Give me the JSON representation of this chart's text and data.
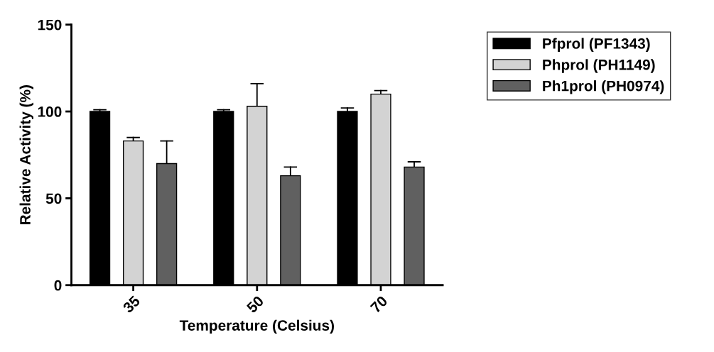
{
  "chart_data": {
    "type": "bar",
    "xlabel": "Temperature (Celsius)",
    "ylabel": "Relative Activity (%)",
    "categories": [
      "35",
      "50",
      "70"
    ],
    "series": [
      {
        "name": "Pfprol (PF1343)",
        "color": "#000000",
        "values": [
          100,
          100,
          100
        ],
        "errors": [
          [
            100,
            101
          ],
          [
            100,
            101
          ],
          [
            100,
            102
          ]
        ]
      },
      {
        "name": "Phprol (PH1149)",
        "color": "#d3d3d3",
        "values": [
          83,
          103,
          110
        ],
        "errors": [
          [
            83,
            85
          ],
          [
            103,
            116
          ],
          [
            110,
            112
          ]
        ]
      },
      {
        "name": "Ph1prol (PH0974)",
        "color": "#606060",
        "values": [
          70,
          63,
          68
        ],
        "errors": [
          [
            70,
            83
          ],
          [
            63,
            68
          ],
          [
            68,
            71
          ]
        ]
      }
    ],
    "ylim": [
      0,
      150
    ],
    "yticks": [
      0,
      50,
      100,
      150
    ],
    "grid": false,
    "legend": "right"
  }
}
